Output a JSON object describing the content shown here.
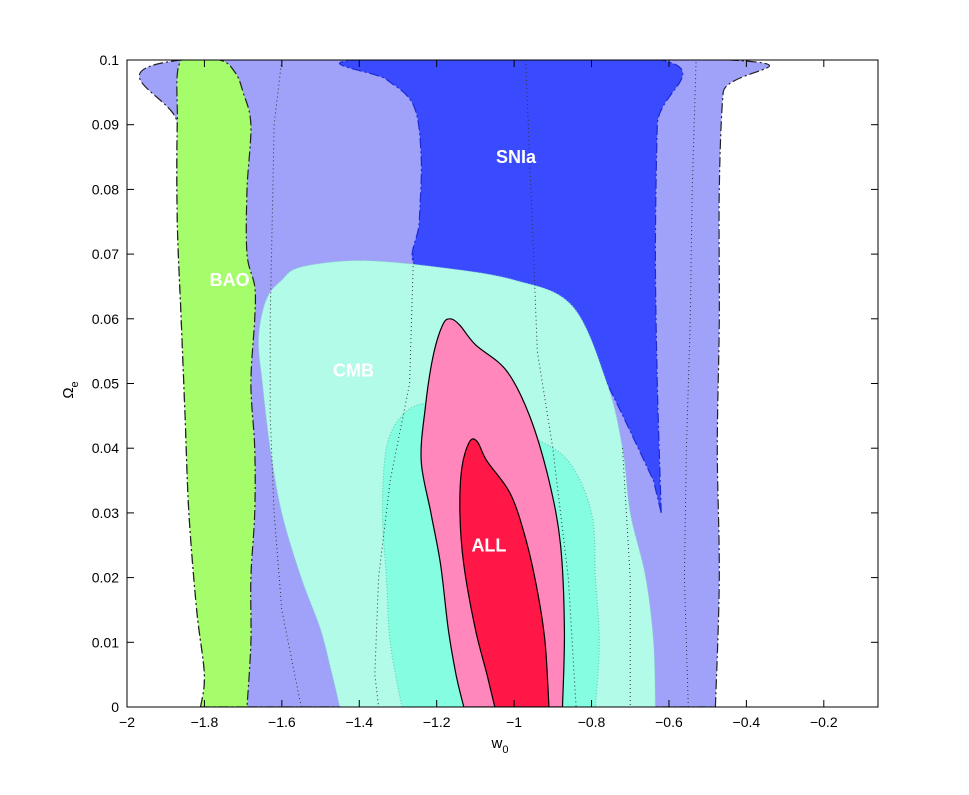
{
  "chart_data": {
    "type": "contour",
    "xlabel": "w",
    "xlabel_sub": "0",
    "ylabel": "Ω",
    "ylabel_sub": "e",
    "xlim": [
      -2.0,
      -0.06
    ],
    "ylim": [
      0,
      0.1
    ],
    "x_ticks": [
      -2,
      -1.8,
      -1.6,
      -1.4,
      -1.2,
      -1,
      -0.8,
      -0.6,
      -0.4,
      -0.2
    ],
    "x_tick_labels": [
      "−2",
      "−1.8",
      "−1.6",
      "−1.4",
      "−1.2",
      "−1",
      "−0.8",
      "−0.6",
      "−0.4",
      "−0.2"
    ],
    "y_ticks": [
      0,
      0.01,
      0.02,
      0.03,
      0.04,
      0.05,
      0.06,
      0.07,
      0.08,
      0.09,
      0.1
    ],
    "y_tick_labels": [
      "0",
      "0.01",
      "0.02",
      "0.03",
      "0.04",
      "0.05",
      "0.06",
      "0.07",
      "0.08",
      "0.09",
      "0.1"
    ],
    "grid": false,
    "regions": [
      {
        "label": "SNIa",
        "label_pos": [
          -0.995,
          0.085
        ],
        "outer_color": "#a0a2fa",
        "inner_color": "#3a4aff",
        "outer": [
          [
            -1.81,
            0
          ],
          [
            -1.8,
            0.005
          ],
          [
            -1.82,
            0.015
          ],
          [
            -1.84,
            0.03
          ],
          [
            -1.85,
            0.045
          ],
          [
            -1.86,
            0.06
          ],
          [
            -1.87,
            0.075
          ],
          [
            -1.87,
            0.09
          ],
          [
            -1.86,
            0.1
          ],
          [
            -0.44,
            0.1
          ],
          [
            -0.46,
            0.095
          ],
          [
            -0.47,
            0.08
          ],
          [
            -0.47,
            0.06
          ],
          [
            -0.475,
            0.04
          ],
          [
            -0.47,
            0.02
          ],
          [
            -0.48,
            0
          ]
        ],
        "inner": [
          [
            -0.62,
            0.03
          ],
          [
            -0.63,
            0.05
          ],
          [
            -0.635,
            0.07
          ],
          [
            -0.63,
            0.09
          ],
          [
            -0.62,
            0.1
          ],
          [
            -1.41,
            0.1
          ],
          [
            -1.33,
            0.097
          ],
          [
            -1.26,
            0.093
          ],
          [
            -1.24,
            0.085
          ],
          [
            -1.245,
            0.075
          ],
          [
            -1.25,
            0.068
          ],
          [
            -1.05,
            0.065
          ],
          [
            -0.87,
            0.062
          ],
          [
            -0.76,
            0.05
          ],
          [
            -0.64,
            0.035
          ]
        ]
      },
      {
        "label": "BAO",
        "label_pos": [
          -1.735,
          0.066
        ],
        "outer_color": "#a6fd6c",
        "outer": [
          [
            -1.81,
            0
          ],
          [
            -1.8,
            0.005
          ],
          [
            -1.82,
            0.015
          ],
          [
            -1.84,
            0.03
          ],
          [
            -1.85,
            0.045
          ],
          [
            -1.86,
            0.06
          ],
          [
            -1.87,
            0.075
          ],
          [
            -1.87,
            0.09
          ],
          [
            -1.86,
            0.1
          ],
          [
            -1.76,
            0.1
          ],
          [
            -1.72,
            0.098
          ],
          [
            -1.7,
            0.095
          ],
          [
            -1.68,
            0.09
          ],
          [
            -1.69,
            0.08
          ],
          [
            -1.69,
            0.07
          ],
          [
            -1.67,
            0.065
          ],
          [
            -1.67,
            0.06
          ],
          [
            -1.68,
            0.05
          ],
          [
            -1.67,
            0.04
          ],
          [
            -1.67,
            0.03
          ],
          [
            -1.68,
            0.02
          ],
          [
            -1.68,
            0.01
          ],
          [
            -1.69,
            0
          ]
        ]
      },
      {
        "label": "CMB",
        "label_pos": [
          -1.415,
          0.052
        ],
        "outer_color": "#b3fbe9",
        "inner_color": "#84fde0",
        "outer": [
          [
            -1.45,
            0
          ],
          [
            -1.47,
            0.005
          ],
          [
            -1.5,
            0.012
          ],
          [
            -1.55,
            0.02
          ],
          [
            -1.6,
            0.03
          ],
          [
            -1.63,
            0.04
          ],
          [
            -1.65,
            0.05
          ],
          [
            -1.66,
            0.057
          ],
          [
            -1.64,
            0.063
          ],
          [
            -1.6,
            0.066
          ],
          [
            -1.55,
            0.068
          ],
          [
            -1.4,
            0.069
          ],
          [
            -1.2,
            0.068
          ],
          [
            -1.0,
            0.066
          ],
          [
            -0.85,
            0.062
          ],
          [
            -0.76,
            0.05
          ],
          [
            -0.72,
            0.04
          ],
          [
            -0.7,
            0.03
          ],
          [
            -0.66,
            0.02
          ],
          [
            -0.64,
            0.01
          ],
          [
            -0.635,
            0
          ]
        ],
        "inner": [
          [
            -1.29,
            0
          ],
          [
            -1.32,
            0.01
          ],
          [
            -1.33,
            0.02
          ],
          [
            -1.34,
            0.03
          ],
          [
            -1.33,
            0.04
          ],
          [
            -1.29,
            0.045
          ],
          [
            -1.22,
            0.047
          ],
          [
            -1.08,
            0.046
          ],
          [
            -0.96,
            0.042
          ],
          [
            -0.86,
            0.038
          ],
          [
            -0.8,
            0.03
          ],
          [
            -0.79,
            0.02
          ],
          [
            -0.78,
            0.01
          ],
          [
            -0.79,
            0
          ]
        ]
      },
      {
        "label": "ALL",
        "label_pos": [
          -1.065,
          0.025
        ],
        "outer_color": "#ff87bb",
        "inner_color": "#ff1748",
        "outer": [
          [
            -1.13,
            0
          ],
          [
            -1.15,
            0.005
          ],
          [
            -1.17,
            0.012
          ],
          [
            -1.19,
            0.022
          ],
          [
            -1.215,
            0.03
          ],
          [
            -1.24,
            0.038
          ],
          [
            -1.23,
            0.046
          ],
          [
            -1.21,
            0.054
          ],
          [
            -1.185,
            0.059
          ],
          [
            -1.165,
            0.06
          ],
          [
            -1.14,
            0.059
          ],
          [
            -1.1,
            0.056
          ],
          [
            -1.02,
            0.052
          ],
          [
            -0.96,
            0.045
          ],
          [
            -0.91,
            0.035
          ],
          [
            -0.88,
            0.025
          ],
          [
            -0.87,
            0.012
          ],
          [
            -0.875,
            0
          ]
        ],
        "inner": [
          [
            -1.05,
            0
          ],
          [
            -1.07,
            0.005
          ],
          [
            -1.1,
            0.012
          ],
          [
            -1.13,
            0.022
          ],
          [
            -1.14,
            0.03
          ],
          [
            -1.135,
            0.037
          ],
          [
            -1.115,
            0.041
          ],
          [
            -1.095,
            0.041
          ],
          [
            -1.07,
            0.038
          ],
          [
            -1.01,
            0.033
          ],
          [
            -0.97,
            0.026
          ],
          [
            -0.94,
            0.018
          ],
          [
            -0.92,
            0.01
          ],
          [
            -0.91,
            0
          ]
        ]
      }
    ],
    "dotted_lines": [
      [
        [
          -1.55,
          0
        ],
        [
          -1.6,
          0.015
        ],
        [
          -1.62,
          0.03
        ],
        [
          -1.63,
          0.045
        ],
        [
          -1.63,
          0.06
        ],
        [
          -1.625,
          0.075
        ],
        [
          -1.62,
          0.09
        ],
        [
          -1.6,
          0.1
        ]
      ],
      [
        [
          -0.55,
          0
        ],
        [
          -0.56,
          0.02
        ],
        [
          -0.555,
          0.04
        ],
        [
          -0.545,
          0.06
        ],
        [
          -0.54,
          0.08
        ],
        [
          -0.53,
          0.1
        ]
      ],
      [
        [
          -0.97,
          0.1
        ],
        [
          -0.96,
          0.085
        ],
        [
          -0.95,
          0.07
        ],
        [
          -0.94,
          0.055
        ],
        [
          -0.9,
          0.04
        ],
        [
          -0.86,
          0.02
        ],
        [
          -0.84,
          0
        ]
      ],
      [
        [
          -1.26,
          0.07
        ],
        [
          -1.27,
          0.05
        ],
        [
          -1.32,
          0.035
        ],
        [
          -1.35,
          0.02
        ],
        [
          -1.36,
          0.005
        ],
        [
          -1.35,
          0
        ]
      ],
      [
        [
          -0.72,
          0.04
        ],
        [
          -0.7,
          0.02
        ],
        [
          -0.7,
          0
        ]
      ]
    ]
  }
}
